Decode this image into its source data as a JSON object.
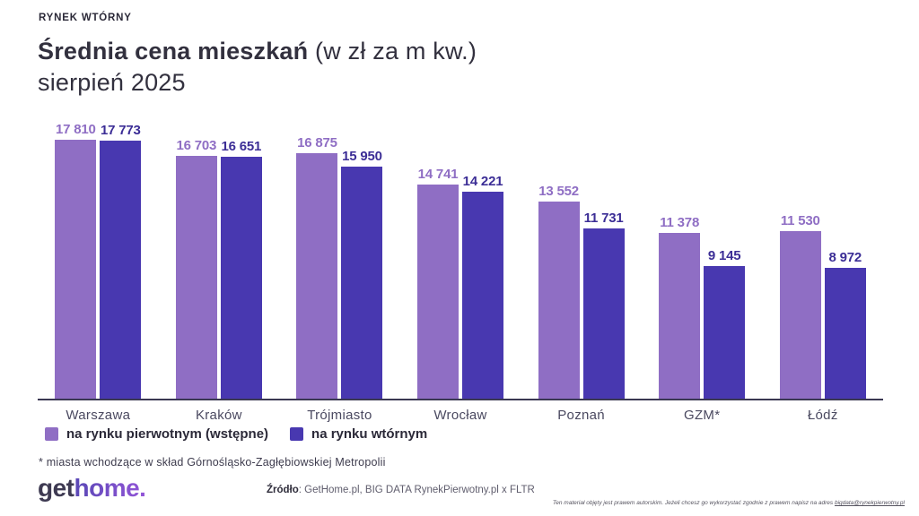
{
  "header": {
    "eyebrow": "RYNEK WTÓRNY",
    "title_main": "Średnia cena mieszkań ",
    "title_unit": "(w zł za m kw.)",
    "title_line2": "sierpień 2025"
  },
  "chart_data": {
    "type": "bar",
    "categories": [
      "Warszawa",
      "Kraków",
      "Trójmiasto",
      "Wrocław",
      "Poznań",
      "GZM*",
      "Łódź"
    ],
    "series": [
      {
        "name": "na rynku pierwotnym (wstępne)",
        "color": "#8f6ec4",
        "label_color": "#8f6ec4",
        "values": [
          17810,
          16703,
          16875,
          14741,
          13552,
          11378,
          11530
        ]
      },
      {
        "name": "na rynku wtórnym",
        "color": "#4838b0",
        "label_color": "#3c2e96",
        "values": [
          17773,
          16651,
          15950,
          14221,
          11731,
          9145,
          8972
        ]
      }
    ],
    "ylim": [
      0,
      17810
    ],
    "grid": false,
    "value_labels": "above-bars, space thousands separator",
    "legend_position": "bottom-left",
    "title": "Średnia cena mieszkań (w zł za m kw.) sierpień 2025",
    "xlabel": "",
    "ylabel": ""
  },
  "footnote": "* miasta wchodzące w skład Górnośląsko-Zagłębiowskiej Metropolii",
  "logo": {
    "part1": "get",
    "part2": "home."
  },
  "source": {
    "label": "Źródło",
    "text": ": GetHome.pl, BIG DATA RynekPierwotny.pl x FLTR"
  },
  "disclaimer": {
    "text": "Ten materiał objęty jest prawem autorskim. Jeżeli chcesz go wykorzystać zgodnie z prawem napisz na adres ",
    "link": "bigdata@rynekpierwotny.pl"
  },
  "colors": {
    "primary_series": "#8f6ec4",
    "secondary_series": "#4838b0",
    "axis": "#3a3852",
    "title_text": "#32303e"
  }
}
